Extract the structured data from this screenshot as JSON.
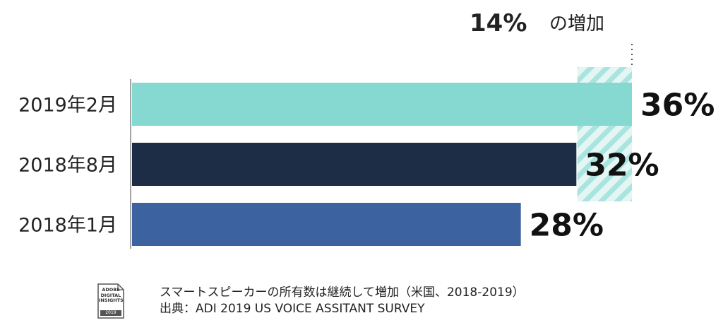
{
  "chart_data": {
    "type": "bar",
    "orientation": "horizontal",
    "categories": [
      "2019年2月",
      "2018年8月",
      "2018年1月"
    ],
    "values": [
      36,
      32,
      28
    ],
    "value_labels": [
      "36%",
      "32%",
      "28%"
    ],
    "unit": "%",
    "colors": [
      "#86d9d0",
      "#1c2d45",
      "#3c63a0"
    ],
    "annotation": {
      "value": "14%",
      "text": "の増加"
    },
    "grid": false,
    "legend": "none"
  },
  "footer": {
    "logo": {
      "text": "ADOBE\nDIGITAL\nINSIGHTS",
      "year": "2019"
    },
    "note": "スマートスピーカーの所有数は継続して増加（米国、2018-2019）",
    "source": "出典：ADI 2019 US VOICE ASSITANT SURVEY"
  }
}
